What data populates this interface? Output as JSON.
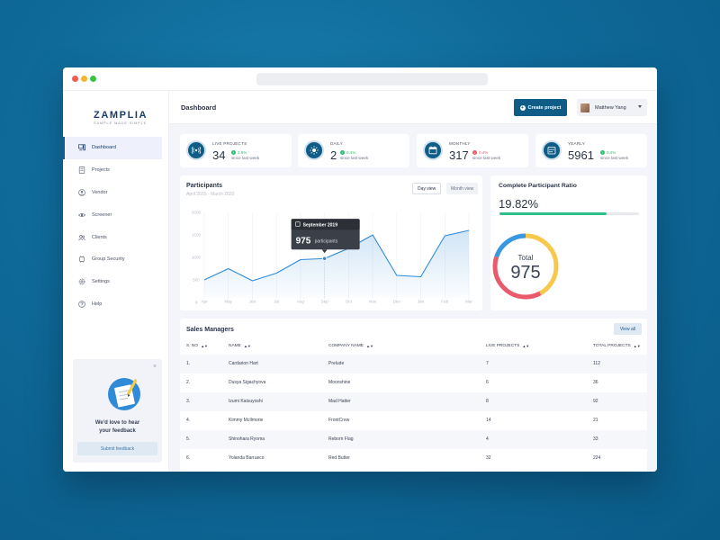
{
  "app": {
    "logo_text": "ZAMPLIA",
    "logo_tagline": "SAMPLE MADE SIMPLE"
  },
  "sidebar": {
    "items": [
      {
        "label": "Dashboard",
        "icon": "dashboard-icon",
        "active": true
      },
      {
        "label": "Projects",
        "icon": "document-icon",
        "active": false
      },
      {
        "label": "Vendor",
        "icon": "user-circle-icon",
        "active": false
      },
      {
        "label": "Screener",
        "icon": "eye-icon",
        "active": false
      },
      {
        "label": "Clients",
        "icon": "users-icon",
        "active": false
      },
      {
        "label": "Group Security",
        "icon": "shield-icon",
        "active": false
      },
      {
        "label": "Settings",
        "icon": "gear-icon",
        "active": false
      },
      {
        "label": "Help",
        "icon": "help-icon",
        "active": false
      }
    ],
    "feedback": {
      "close": "×",
      "line1": "We'd love to hear",
      "line2": "your feedback",
      "button": "Submit feedback"
    }
  },
  "header": {
    "title": "Dashboard",
    "create_button": "Create project",
    "create_icon": "+",
    "user_name": "Matthew Yang"
  },
  "stats": [
    {
      "label": "LIVE PROJECTS",
      "value": "34",
      "delta": "2.8%",
      "direction": "up",
      "since": "since last week",
      "icon": "broadcast-icon"
    },
    {
      "label": "DAILY",
      "value": "2",
      "delta": "0.4%",
      "direction": "up",
      "since": "since last week",
      "icon": "sun-icon"
    },
    {
      "label": "MONTHLY",
      "value": "317",
      "delta": "0.4%",
      "direction": "down",
      "since": "since last week",
      "icon": "calendar-icon"
    },
    {
      "label": "YEARLY",
      "value": "5961",
      "delta": "0.4%",
      "direction": "up",
      "since": "since last week",
      "icon": "calendar-grid-icon"
    }
  ],
  "colors": {
    "accent": "#0f5c87",
    "up": "#2fbf71",
    "down": "#e85d6a",
    "line": "#2f8ad8",
    "donut_blue": "#3a98e0",
    "donut_yellow": "#f7c84a",
    "donut_red": "#ea5a6d",
    "ratio_green": "#2fbf8a"
  },
  "chart_data": {
    "type": "area",
    "title": "Participants",
    "subtitle": "April 2019 - March 2020",
    "toggles": [
      "Day view",
      "Month view"
    ],
    "active_toggle": "Day view",
    "categories": [
      "Apr",
      "May",
      "Jun",
      "Jul",
      "Aug",
      "Sep",
      "Oct",
      "Nov",
      "Dec",
      "Jan",
      "Feb",
      "Mar"
    ],
    "values": [
      500,
      750,
      480,
      650,
      950,
      975,
      1200,
      1500,
      600,
      570,
      1480,
      1600
    ],
    "y_ticks": [
      "0",
      "500",
      "1000",
      "1500",
      "2000"
    ],
    "ylim": [
      0,
      2000
    ],
    "grid": true,
    "tooltip": {
      "month_index": 5,
      "title": "September 2019",
      "value": "975",
      "unit": "participants"
    }
  },
  "ratio": {
    "title": "Complete Participant Ratio",
    "value": "19.82%",
    "progress": 0.77,
    "donut_label": "Total",
    "donut_value": "975",
    "segments": [
      0.42,
      0.38,
      0.2
    ]
  },
  "table": {
    "title": "Sales Managers",
    "view_all": "View all",
    "sort_icon": "▲▼",
    "columns": [
      "S. NO",
      "NAME",
      "COMPANY NAME",
      "LIVE PROJECTS",
      "TOTAL PROJECTS"
    ],
    "rows": [
      {
        "no": "1.",
        "name": "Cardarion Hart",
        "company": "Prelude",
        "live": "7",
        "total": "112"
      },
      {
        "no": "2.",
        "name": "Dusya Sigachyova",
        "company": "Moonshine",
        "live": "6",
        "total": "36"
      },
      {
        "no": "3.",
        "name": "Izumi Katsuyoshi",
        "company": "Mad Hatter",
        "live": "8",
        "total": "92"
      },
      {
        "no": "4.",
        "name": "Kimmy McIlmorie",
        "company": "FrontCrew",
        "live": "14",
        "total": "21"
      },
      {
        "no": "5.",
        "name": "Shinohara Ryoma",
        "company": "Reborn Flag",
        "live": "4",
        "total": "33"
      },
      {
        "no": "6.",
        "name": "Yolanda Barrueco",
        "company": "Red Butter",
        "live": "32",
        "total": "224"
      }
    ]
  }
}
